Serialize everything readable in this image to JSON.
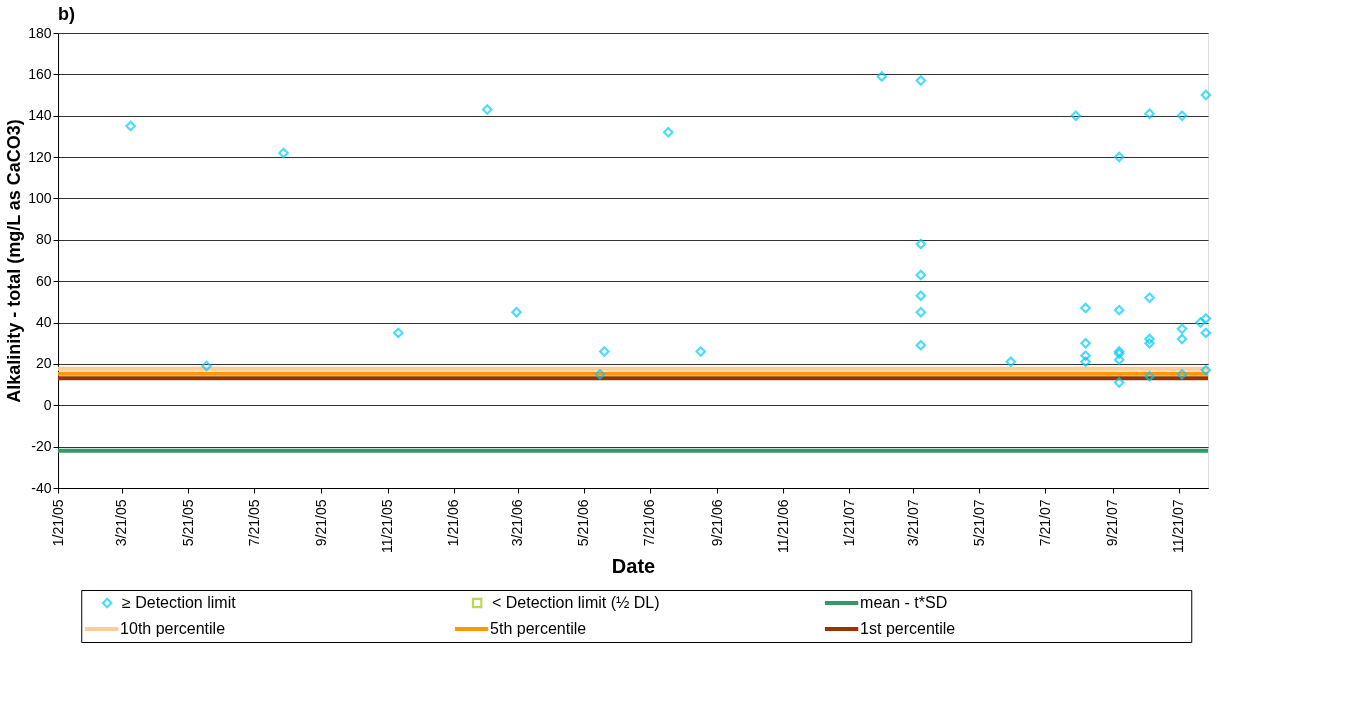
{
  "chart_data": {
    "type": "scatter",
    "title": "b)",
    "xlabel": "Date",
    "ylabel": "Alkalinity - total (mg/L as CaCO3)",
    "xlim": [
      "2005-01-21",
      "2007-12-18"
    ],
    "xticks": [
      {
        "value": "2005-01-21",
        "label": "1/21/05"
      },
      {
        "value": "2005-03-21",
        "label": "3/21/05"
      },
      {
        "value": "2005-05-21",
        "label": "5/21/05"
      },
      {
        "value": "2005-07-21",
        "label": "7/21/05"
      },
      {
        "value": "2005-09-21",
        "label": "9/21/05"
      },
      {
        "value": "2005-11-21",
        "label": "11/21/05"
      },
      {
        "value": "2006-01-21",
        "label": "1/21/06"
      },
      {
        "value": "2006-03-21",
        "label": "3/21/06"
      },
      {
        "value": "2006-05-21",
        "label": "5/21/06"
      },
      {
        "value": "2006-07-21",
        "label": "7/21/06"
      },
      {
        "value": "2006-09-21",
        "label": "9/21/06"
      },
      {
        "value": "2006-11-21",
        "label": "11/21/06"
      },
      {
        "value": "2007-01-21",
        "label": "1/21/07"
      },
      {
        "value": "2007-03-21",
        "label": "3/21/07"
      },
      {
        "value": "2007-05-21",
        "label": "5/21/07"
      },
      {
        "value": "2007-07-21",
        "label": "7/21/07"
      },
      {
        "value": "2007-09-21",
        "label": "9/21/07"
      },
      {
        "value": "2007-11-21",
        "label": "11/21/07"
      }
    ],
    "ylim": [
      -40,
      180
    ],
    "yticks": [
      -40,
      -20,
      0,
      20,
      40,
      60,
      80,
      100,
      120,
      140,
      160,
      180
    ],
    "grid": "y",
    "legend": "bottom",
    "series": [
      {
        "name": "≥ Detection limit",
        "color": "#00ccff",
        "marker": "diamond",
        "x": [
          "2005-03-29",
          "2005-06-07",
          "2005-08-17",
          "2005-12-01",
          "2006-02-21",
          "2006-03-20",
          "2006-06-05",
          "2006-06-09",
          "2006-08-07",
          "2006-09-06",
          "2007-02-20",
          "2007-03-28",
          "2007-03-28",
          "2007-03-28",
          "2007-03-28",
          "2007-03-28",
          "2007-03-28",
          "2007-06-19",
          "2007-08-18",
          "2007-08-27",
          "2007-08-27",
          "2007-08-27",
          "2007-08-27",
          "2007-09-27",
          "2007-09-27",
          "2007-09-27",
          "2007-09-27",
          "2007-09-27",
          "2007-09-27",
          "2007-10-25",
          "2007-10-25",
          "2007-10-25",
          "2007-10-25",
          "2007-10-25",
          "2007-11-24",
          "2007-11-24",
          "2007-11-24",
          "2007-11-24",
          "2007-12-16",
          "2007-12-16",
          "2007-12-11",
          "2007-12-16",
          "2007-12-16"
        ],
        "values": [
          135,
          19,
          122,
          35,
          143,
          45,
          15,
          26,
          132,
          26,
          159,
          157,
          78,
          63,
          53,
          45,
          29,
          21,
          140,
          47,
          30,
          24,
          21,
          120,
          46,
          26,
          25,
          22,
          11,
          141,
          52,
          32,
          30,
          14,
          140,
          37,
          32,
          15,
          150,
          42,
          40,
          35,
          17
        ]
      },
      {
        "name": "< Detection limit (½ DL)",
        "color": "#99cc00",
        "marker": "square"
      }
    ],
    "ref_lines": [
      {
        "axis": "y",
        "value": -22,
        "label": "mean - t*SD",
        "color": "#339966"
      },
      {
        "axis": "y",
        "value": 17.7,
        "label": "10th percentile",
        "color": "#ffcc99"
      },
      {
        "axis": "y",
        "value": 15.2,
        "label": "5th percentile",
        "color": "#ff9900"
      },
      {
        "axis": "y",
        "value": 13.1,
        "label": "1st percentile",
        "color": "#993300"
      }
    ]
  }
}
